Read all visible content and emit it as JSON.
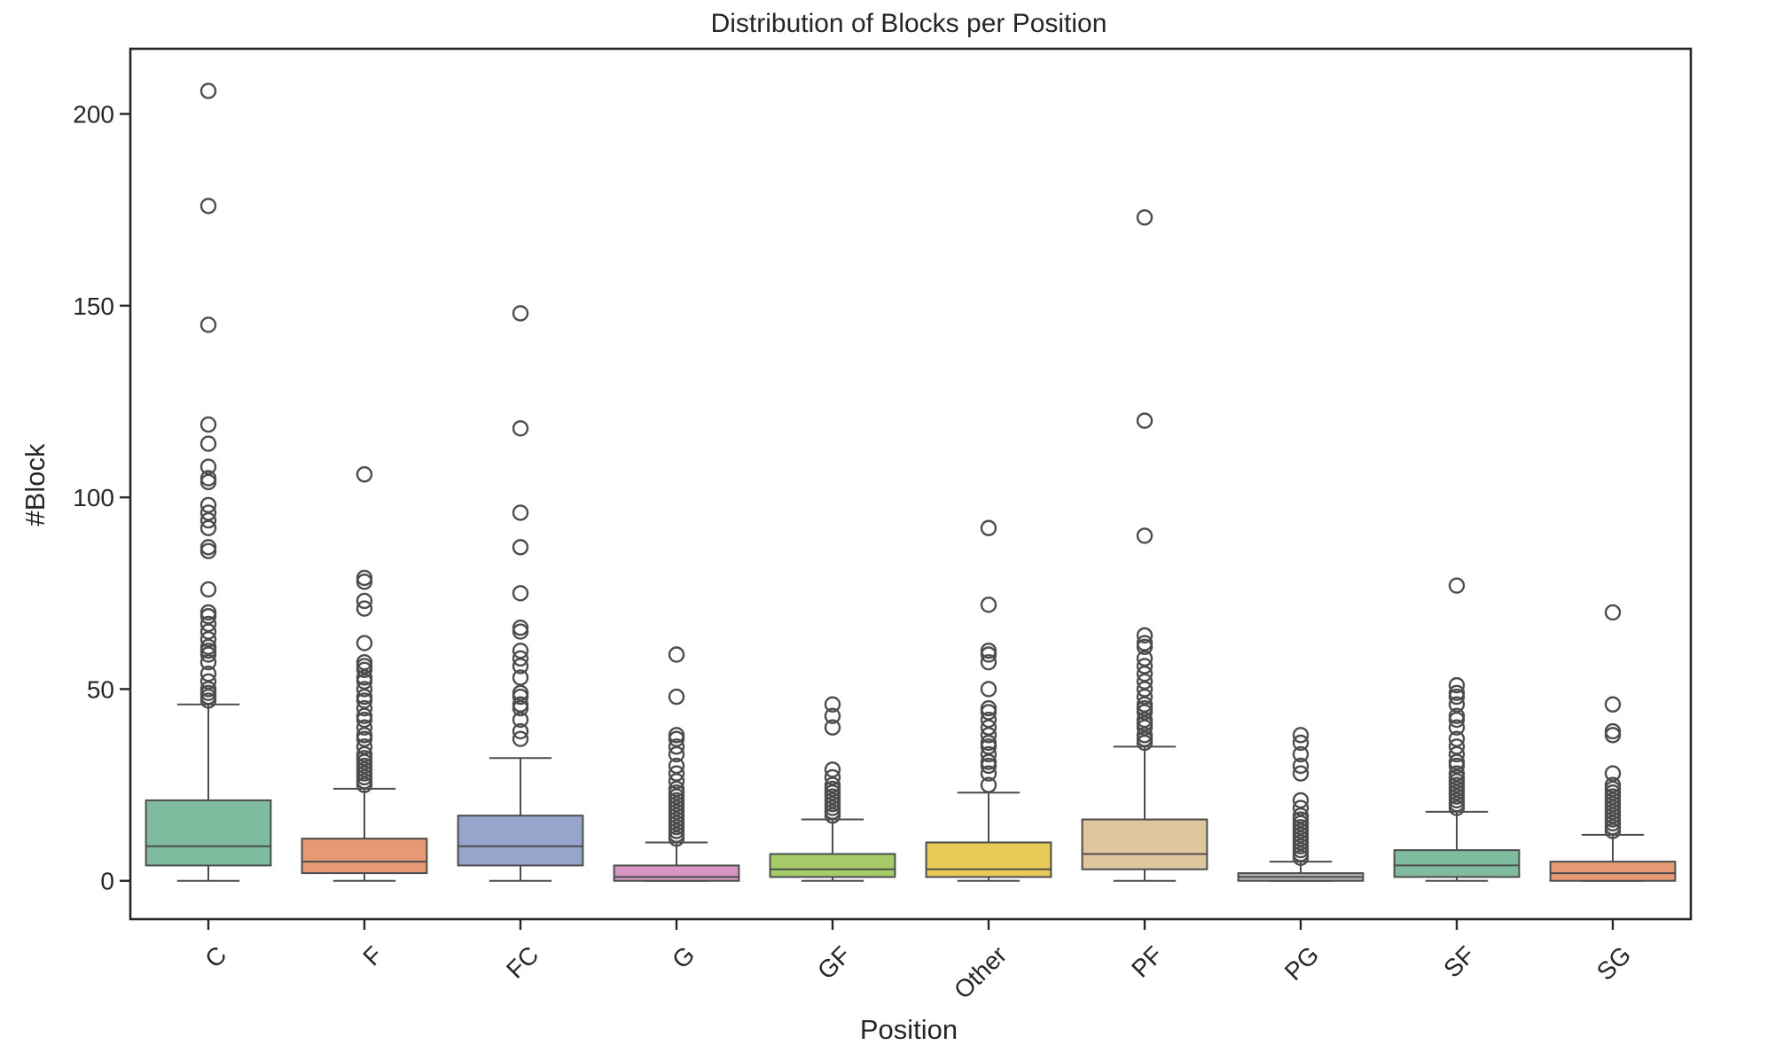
{
  "chart_data": {
    "type": "box",
    "title": "Distribution of Blocks per Position",
    "xlabel": "Position",
    "ylabel": "#Block",
    "ylim": [
      -10,
      217
    ],
    "yticks": [
      0,
      50,
      100,
      150,
      200
    ],
    "grid": false,
    "legend": "none",
    "categories": [
      {
        "label": "C",
        "color": "#7fbc9f",
        "whislo": 0,
        "q1": 4,
        "median": 9,
        "q3": 21,
        "whishi": 46,
        "fliers": [
          47,
          48,
          49,
          50,
          52,
          54,
          57,
          59,
          60,
          61,
          63,
          65,
          67,
          69,
          70,
          76,
          86,
          87,
          92,
          94,
          96,
          98,
          104,
          105,
          108,
          114,
          119,
          145,
          176,
          206
        ]
      },
      {
        "label": "F",
        "color": "#e59a73",
        "whislo": 0,
        "q1": 2,
        "median": 5,
        "q3": 11,
        "whishi": 24,
        "fliers": [
          25,
          26,
          27,
          28,
          29,
          30,
          31,
          32,
          33,
          35,
          37,
          38,
          40,
          42,
          43,
          45,
          47,
          48,
          50,
          52,
          53,
          55,
          56,
          57,
          62,
          71,
          73,
          78,
          79,
          106
        ]
      },
      {
        "label": "FC",
        "color": "#96a5cc",
        "whislo": 0,
        "q1": 4,
        "median": 9,
        "q3": 17,
        "whishi": 32,
        "fliers": [
          37,
          39,
          42,
          45,
          46,
          48,
          49,
          53,
          56,
          58,
          60,
          65,
          66,
          75,
          87,
          96,
          118,
          148
        ]
      },
      {
        "label": "G",
        "color": "#d695c3",
        "whislo": 0,
        "q1": 0,
        "median": 1,
        "q3": 4,
        "whishi": 10,
        "fliers": [
          11,
          12,
          13,
          14,
          15,
          16,
          17,
          18,
          19,
          20,
          21,
          22,
          23,
          24,
          26,
          28,
          30,
          33,
          35,
          37,
          38,
          48,
          59
        ]
      },
      {
        "label": "GF",
        "color": "#a6cc6a",
        "whislo": 0,
        "q1": 1,
        "median": 3,
        "q3": 7,
        "whishi": 16,
        "fliers": [
          17,
          18,
          19,
          20,
          21,
          22,
          23,
          24,
          25,
          27,
          29,
          40,
          43,
          46
        ]
      },
      {
        "label": "Other",
        "color": "#e8cb57",
        "whislo": 0,
        "q1": 1,
        "median": 3,
        "q3": 10,
        "whishi": 23,
        "fliers": [
          25,
          28,
          30,
          31,
          33,
          35,
          36,
          38,
          40,
          42,
          44,
          45,
          50,
          57,
          59,
          60,
          72,
          92
        ]
      },
      {
        "label": "PF",
        "color": "#dfc69f",
        "whislo": 0,
        "q1": 3,
        "median": 7,
        "q3": 16,
        "whishi": 35,
        "fliers": [
          36,
          37,
          38,
          40,
          41,
          42,
          44,
          45,
          46,
          48,
          50,
          52,
          54,
          56,
          58,
          61,
          62,
          64,
          90,
          120,
          173
        ]
      },
      {
        "label": "PG",
        "color": "#b3b3b3",
        "whislo": 0,
        "q1": 0,
        "median": 1,
        "q3": 2,
        "whishi": 5,
        "fliers": [
          6,
          7,
          8,
          9,
          10,
          11,
          12,
          13,
          14,
          15,
          16,
          17,
          19,
          21,
          28,
          30,
          33,
          36,
          38
        ]
      },
      {
        "label": "SF",
        "color": "#7fbc9f",
        "whislo": 0,
        "q1": 1,
        "median": 4,
        "q3": 8,
        "whishi": 18,
        "fliers": [
          19,
          20,
          21,
          22,
          23,
          24,
          25,
          26,
          27,
          28,
          30,
          31,
          33,
          35,
          37,
          40,
          42,
          43,
          46,
          48,
          49,
          51,
          77
        ]
      },
      {
        "label": "SG",
        "color": "#e59a73",
        "whislo": 0,
        "q1": 0,
        "median": 2,
        "q3": 5,
        "whishi": 12,
        "fliers": [
          13,
          14,
          15,
          16,
          17,
          18,
          19,
          20,
          21,
          22,
          23,
          24,
          25,
          28,
          38,
          39,
          46,
          70
        ]
      }
    ]
  }
}
